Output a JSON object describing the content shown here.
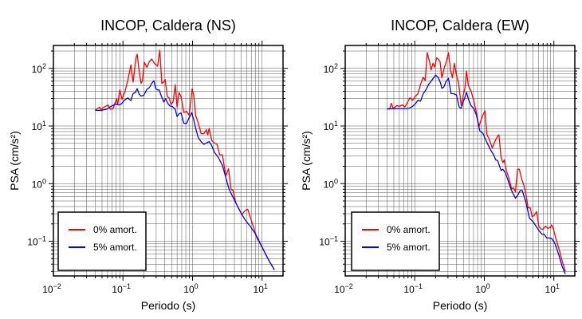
{
  "chart_data": [
    {
      "type": "line",
      "title": "INCOP, Caldera (NS)",
      "xlabel": "Periodo (s)",
      "ylabel": "PSA (cm/s²)",
      "x_scale": "log",
      "y_scale": "log",
      "xlim": [
        0.01,
        20
      ],
      "ylim": [
        0.025,
        250
      ],
      "grid": true,
      "legend_position": "bottom-left",
      "x_ticks": [
        {
          "value": 0.01,
          "base": "10",
          "exp": "−2"
        },
        {
          "value": 0.1,
          "base": "10",
          "exp": "−1"
        },
        {
          "value": 1,
          "base": "10",
          "exp": "0"
        },
        {
          "value": 10,
          "base": "10",
          "exp": "1"
        }
      ],
      "y_ticks": [
        {
          "value": 0.1,
          "base": "10",
          "exp": "−1"
        },
        {
          "value": 1,
          "base": "10",
          "exp": "0"
        },
        {
          "value": 10,
          "base": "10",
          "exp": "1"
        },
        {
          "value": 100,
          "base": "10",
          "exp": "2"
        }
      ],
      "series": [
        {
          "name": "0% amort.",
          "color": "#ff0000",
          "x": [
            0.04,
            0.046,
            0.049,
            0.051,
            0.061,
            0.066,
            0.072,
            0.081,
            0.084,
            0.09,
            0.097,
            0.107,
            0.117,
            0.13,
            0.14,
            0.153,
            0.16,
            0.17,
            0.182,
            0.19,
            0.203,
            0.221,
            0.237,
            0.259,
            0.283,
            0.315,
            0.338,
            0.362,
            0.386,
            0.403,
            0.433,
            0.46,
            0.49,
            0.525,
            0.564,
            0.6,
            0.638,
            0.684,
            0.748,
            0.816,
            0.892,
            0.991,
            1.045,
            1.11,
            1.21,
            1.33,
            1.45,
            1.58,
            1.65,
            1.73,
            1.89,
            2.06,
            2.25,
            2.46,
            2.69,
            3.01,
            3.29,
            3.59,
            3.82,
            4.18,
            4.56,
            5.11,
            5.69,
            6.21,
            7.09,
            7.74,
            8.46,
            9.66,
            11.0,
            12.6,
            15.0
          ],
          "y": [
            18.7,
            21.2,
            18.7,
            20.7,
            23.1,
            19.5,
            20.1,
            29.8,
            23.6,
            42.2,
            29.1,
            40.0,
            61.1,
            115,
            57.9,
            150,
            176,
            93.3,
            55.0,
            61.1,
            128,
            104,
            128,
            146,
            122,
            109,
            207,
            55.0,
            57.9,
            64.4,
            32.4,
            30.7,
            23.6,
            26.2,
            52.1,
            21.2,
            38.0,
            32.4,
            17.1,
            18.1,
            15.4,
            44.5,
            32.4,
            15.4,
            11.2,
            7.36,
            7.36,
            8.62,
            6.98,
            9.09,
            5.65,
            5.08,
            4.82,
            3.16,
            3.16,
            1.35,
            1.82,
            0.8,
            0.76,
            0.47,
            0.38,
            0.29,
            0.34,
            0.36,
            0.22,
            0.16,
            0.112,
            0.086,
            0.063,
            0.046,
            0.032
          ]
        },
        {
          "name": "5% amort.",
          "color": "#0000ff",
          "x": [
            0.04,
            0.049,
            0.058,
            0.069,
            0.079,
            0.086,
            0.094,
            0.107,
            0.117,
            0.13,
            0.14,
            0.15,
            0.16,
            0.17,
            0.182,
            0.199,
            0.221,
            0.242,
            0.259,
            0.278,
            0.296,
            0.315,
            0.332,
            0.353,
            0.386,
            0.41,
            0.44,
            0.472,
            0.516,
            0.564,
            0.6,
            0.638,
            0.684,
            0.748,
            0.816,
            0.892,
            0.974,
            1.045,
            1.11,
            1.21,
            1.33,
            1.45,
            1.58,
            1.73,
            1.89,
            2.06,
            2.35,
            2.69,
            3.01,
            3.35,
            3.82,
            4.37,
            4.98,
            5.69,
            6.78,
            8.09,
            9.66,
            11.0,
            12.6,
            15.0
          ],
          "y": [
            18.7,
            18.7,
            19.5,
            22.3,
            24.1,
            23.1,
            24.1,
            28.5,
            30.7,
            27.6,
            36.8,
            38.0,
            44.5,
            35.9,
            33.1,
            34.1,
            43.5,
            46.9,
            55.0,
            61.1,
            44.5,
            42.2,
            42.2,
            34.1,
            26.2,
            29.8,
            24.8,
            22.3,
            21.7,
            19.5,
            14.6,
            16.3,
            16.8,
            11.2,
            11.0,
            13.9,
            17.1,
            12.5,
            9.09,
            6.28,
            5.36,
            4.82,
            5.08,
            5.36,
            4.57,
            3.51,
            2.84,
            2.07,
            1.28,
            0.8,
            0.58,
            0.42,
            0.31,
            0.236,
            0.181,
            0.132,
            0.086,
            0.063,
            0.046,
            0.032
          ]
        }
      ]
    },
    {
      "type": "line",
      "title": "INCOP, Caldera (EW)",
      "xlabel": "Periodo (s)",
      "ylabel": "PSA (cm/s²)",
      "x_scale": "log",
      "y_scale": "log",
      "xlim": [
        0.01,
        20
      ],
      "ylim": [
        0.025,
        250
      ],
      "grid": true,
      "legend_position": "bottom-left",
      "x_ticks": [
        {
          "value": 0.01,
          "base": "10",
          "exp": "−2"
        },
        {
          "value": 0.1,
          "base": "10",
          "exp": "−1"
        },
        {
          "value": 1,
          "base": "10",
          "exp": "0"
        },
        {
          "value": 10,
          "base": "10",
          "exp": "1"
        }
      ],
      "y_ticks": [
        {
          "value": 0.1,
          "base": "10",
          "exp": "−1"
        },
        {
          "value": 1,
          "base": "10",
          "exp": "0"
        },
        {
          "value": 10,
          "base": "10",
          "exp": "1"
        },
        {
          "value": 100,
          "base": "10",
          "exp": "2"
        }
      ],
      "series": [
        {
          "name": "0% amort.",
          "color": "#ff0000",
          "x": [
            0.04,
            0.044,
            0.046,
            0.049,
            0.055,
            0.06,
            0.066,
            0.072,
            0.078,
            0.085,
            0.093,
            0.102,
            0.111,
            0.121,
            0.132,
            0.141,
            0.151,
            0.165,
            0.172,
            0.183,
            0.193,
            0.206,
            0.219,
            0.231,
            0.245,
            0.267,
            0.284,
            0.305,
            0.327,
            0.348,
            0.371,
            0.397,
            0.426,
            0.465,
            0.495,
            0.526,
            0.555,
            0.59,
            0.644,
            0.703,
            0.768,
            0.839,
            0.892,
            0.957,
            1.02,
            1.09,
            1.19,
            1.3,
            1.42,
            1.55,
            1.62,
            1.74,
            1.85,
            1.93,
            2.07,
            2.26,
            2.47,
            2.63,
            2.8,
            3.0,
            3.19,
            3.42,
            3.74,
            3.97,
            4.26,
            4.57,
            4.87,
            5.18,
            5.65,
            6.06,
            6.5,
            6.92,
            7.55,
            8.24,
            8.77,
            9.25,
            9.83,
            10.5,
            11.2,
            12.0,
            13.1,
            14.6
          ],
          "y": [
            19.7,
            20.3,
            24.8,
            20.1,
            22.6,
            21.9,
            23.3,
            21.4,
            25.1,
            31.0,
            27.9,
            32.7,
            36.4,
            52.7,
            70.2,
            61.8,
            188,
            123,
            94.4,
            123,
            105,
            152,
            144,
            130,
            68.7,
            105,
            130,
            188,
            94.4,
            68.7,
            123,
            76.3,
            55.6,
            22.6,
            32.7,
            45.0,
            89.6,
            50.0,
            40.5,
            27.9,
            17.3,
            9.7,
            12.6,
            15.6,
            18.3,
            7.05,
            5.7,
            4.15,
            5.4,
            6.68,
            7.05,
            2.86,
            2.32,
            2.58,
            1.69,
            1.23,
            0.81,
            0.85,
            0.72,
            1.78,
            1.78,
            1.23,
            0.9,
            0.65,
            0.38,
            0.38,
            0.265,
            0.279,
            0.327,
            0.183,
            0.164,
            0.16,
            0.183,
            0.168,
            0.172,
            0.193,
            0.164,
            0.12,
            0.092,
            0.07,
            0.046,
            0.03
          ]
        },
        {
          "name": "5% amort.",
          "color": "#0000ff",
          "x": [
            0.04,
            0.053,
            0.069,
            0.082,
            0.093,
            0.102,
            0.111,
            0.121,
            0.132,
            0.145,
            0.158,
            0.177,
            0.2,
            0.219,
            0.235,
            0.245,
            0.261,
            0.28,
            0.305,
            0.333,
            0.364,
            0.397,
            0.434,
            0.465,
            0.508,
            0.555,
            0.59,
            0.644,
            0.703,
            0.768,
            0.861,
            0.957,
            1.03,
            1.14,
            1.25,
            1.36,
            1.46,
            1.55,
            1.74,
            1.85,
            2.02,
            2.21,
            2.41,
            2.56,
            2.8,
            3.0,
            3.28,
            3.51,
            3.74,
            3.97,
            4.45,
            4.99,
            5.53,
            6.17,
            6.73,
            7.22,
            7.89,
            8.61,
            9.4,
            10.3,
            11.2,
            12.0,
            13.1,
            14.6
          ],
          "y": [
            19.7,
            20.1,
            19.9,
            20.3,
            21.9,
            24.3,
            27.9,
            27.0,
            36.4,
            42.7,
            52.7,
            63.1,
            76.3,
            68.7,
            55.6,
            45.0,
            47.4,
            58.6,
            67.3,
            36.4,
            36.4,
            34.5,
            21.4,
            20.3,
            27.9,
            38.4,
            29.4,
            22.6,
            20.3,
            15.6,
            8.27,
            7.43,
            6.01,
            4.61,
            3.73,
            3.18,
            2.58,
            2.52,
            1.69,
            1.78,
            1.52,
            1.11,
            0.81,
            0.69,
            0.56,
            0.62,
            0.76,
            0.76,
            0.59,
            0.47,
            0.251,
            0.221,
            0.183,
            0.151,
            0.133,
            0.133,
            0.114,
            0.114,
            0.11,
            0.092,
            0.07,
            0.054,
            0.037,
            0.027
          ]
        }
      ]
    }
  ]
}
